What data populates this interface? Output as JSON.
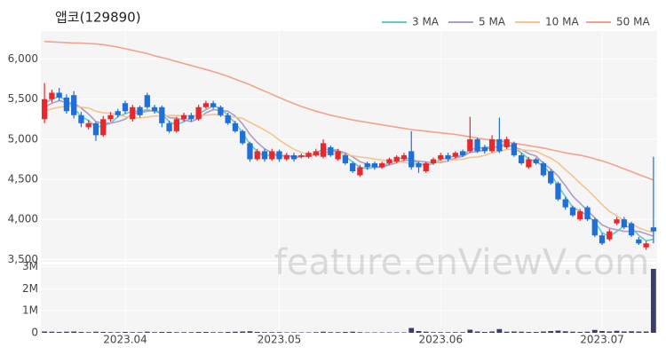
{
  "chart_data": [
    {
      "type": "candlestick",
      "title": "앱코(129890)",
      "watermark": "feature.enViewV.com",
      "up_color": "#e8282e",
      "down_color": "#1f6fd6",
      "grid": true,
      "legend": "top-right",
      "categories": [
        null,
        null,
        null,
        null,
        null,
        null,
        null,
        null,
        null,
        null,
        null,
        "2023.04",
        null,
        null,
        null,
        null,
        null,
        null,
        null,
        null,
        null,
        null,
        null,
        null,
        null,
        null,
        null,
        null,
        null,
        null,
        null,
        null,
        "2023.05",
        null,
        null,
        null,
        null,
        null,
        null,
        null,
        null,
        null,
        null,
        null,
        null,
        null,
        null,
        null,
        null,
        null,
        null,
        null,
        null,
        null,
        "2023.06",
        null,
        null,
        null,
        null,
        null,
        null,
        null,
        null,
        null,
        null,
        null,
        null,
        null,
        null,
        null,
        null,
        null,
        null,
        null,
        null,
        null,
        "2023.07",
        null,
        null,
        null,
        null,
        null,
        null,
        null
      ],
      "open": [
        5250,
        5500,
        5580,
        5520,
        5550,
        5300,
        5150,
        5200,
        5050,
        5250,
        5350,
        5450,
        5250,
        5400,
        5550,
        5400,
        5400,
        5200,
        5100,
        5250,
        5300,
        5250,
        5400,
        5450,
        5400,
        5300,
        5200,
        5100,
        4950,
        4750,
        4850,
        4750,
        4850,
        4750,
        4800,
        4780,
        4780,
        4800,
        4780,
        4900,
        4750,
        4800,
        4700,
        4550,
        4700,
        4700,
        4650,
        4700,
        4720,
        4750,
        4850,
        4700,
        4600,
        4700,
        4750,
        4800,
        4780,
        4850,
        4850,
        5000,
        4900,
        4850,
        5000,
        4900,
        4950,
        4800,
        4650,
        4750,
        4700,
        4600,
        4450,
        4250,
        4150,
        4000,
        4150,
        4000,
        3800,
        3750,
        3950,
        4000,
        3950,
        3750,
        3650,
        3900
      ],
      "high": [
        5700,
        5620,
        5640,
        5560,
        5600,
        5340,
        5240,
        5220,
        5290,
        5340,
        5380,
        5480,
        5430,
        5420,
        5580,
        5430,
        5420,
        5230,
        5280,
        5330,
        5330,
        5430,
        5480,
        5480,
        5420,
        5330,
        5230,
        5120,
        4970,
        4880,
        4880,
        4880,
        4870,
        4830,
        4830,
        4820,
        4850,
        4880,
        5000,
        4920,
        4880,
        4820,
        4720,
        4680,
        4720,
        4720,
        4720,
        4770,
        4800,
        4830,
        5100,
        4720,
        4720,
        4770,
        4830,
        4830,
        4850,
        4870,
        5280,
        5020,
        4930,
        5050,
        5270,
        5030,
        4970,
        4830,
        4780,
        4770,
        4720,
        4620,
        4470,
        4280,
        4170,
        4130,
        4170,
        4020,
        3830,
        3880,
        4030,
        4030,
        3970,
        3780,
        3730,
        4780
      ],
      "low": [
        5200,
        5460,
        5480,
        5320,
        5260,
        5150,
        5120,
        4980,
        5030,
        5220,
        5270,
        5320,
        5220,
        5270,
        5380,
        5320,
        5150,
        5080,
        5080,
        5220,
        5220,
        5230,
        5380,
        5380,
        5280,
        5180,
        5080,
        4930,
        4720,
        4730,
        4720,
        4730,
        4720,
        4730,
        4720,
        4760,
        4760,
        4780,
        4760,
        4780,
        4730,
        4680,
        4580,
        4530,
        4620,
        4620,
        4630,
        4680,
        4700,
        4730,
        4620,
        4580,
        4580,
        4680,
        4730,
        4720,
        4760,
        4780,
        4830,
        4830,
        4820,
        4830,
        4830,
        4880,
        4780,
        4680,
        4630,
        4680,
        4530,
        4430,
        4230,
        4120,
        4030,
        3980,
        3980,
        3780,
        3680,
        3730,
        3930,
        3880,
        3780,
        3680,
        3620,
        3700
      ],
      "close": [
        5500,
        5580,
        5520,
        5350,
        5300,
        5200,
        5200,
        5050,
        5250,
        5300,
        5300,
        5350,
        5400,
        5300,
        5400,
        5350,
        5200,
        5100,
        5250,
        5300,
        5250,
        5400,
        5450,
        5400,
        5300,
        5200,
        5100,
        4950,
        4750,
        4850,
        4750,
        4850,
        4750,
        4800,
        4750,
        4800,
        4830,
        4850,
        4950,
        4800,
        4850,
        4700,
        4600,
        4650,
        4650,
        4650,
        4700,
        4750,
        4780,
        4800,
        4650,
        4650,
        4700,
        4750,
        4800,
        4750,
        4830,
        4800,
        5000,
        4850,
        4850,
        5000,
        4850,
        5000,
        4800,
        4700,
        4750,
        4700,
        4550,
        4450,
        4250,
        4150,
        4050,
        4100,
        4000,
        3800,
        3700,
        3850,
        4000,
        3900,
        3800,
        3700,
        3700,
        3850
      ],
      "series": [
        {
          "name": "3 MA",
          "color": "#63c9cc",
          "values": [
            5450,
            5500,
            5533,
            5483,
            5390,
            5283,
            5233,
            5150,
            5167,
            5200,
            5283,
            5317,
            5350,
            5350,
            5367,
            5350,
            5317,
            5217,
            5183,
            5217,
            5267,
            5317,
            5367,
            5417,
            5383,
            5300,
            5200,
            5083,
            4933,
            4850,
            4783,
            4817,
            4783,
            4800,
            4767,
            4783,
            4793,
            4827,
            4877,
            4867,
            4867,
            4783,
            4717,
            4650,
            4633,
            4650,
            4667,
            4700,
            4743,
            4777,
            4743,
            4700,
            4667,
            4700,
            4750,
            4767,
            4793,
            4793,
            4877,
            4883,
            4900,
            4900,
            4900,
            4950,
            4883,
            4833,
            4750,
            4717,
            4667,
            4567,
            4417,
            4283,
            4150,
            4100,
            4050,
            3967,
            3833,
            3783,
            3850,
            3917,
            3900,
            3800,
            3733,
            3750
          ]
        },
        {
          "name": "5 MA",
          "color": "#ab9cc9",
          "values": [
            5400,
            5450,
            5480,
            5460,
            5450,
            5390,
            5314,
            5220,
            5200,
            5200,
            5220,
            5250,
            5320,
            5330,
            5350,
            5360,
            5330,
            5270,
            5260,
            5240,
            5220,
            5260,
            5330,
            5370,
            5360,
            5350,
            5290,
            5190,
            5060,
            4960,
            4880,
            4830,
            4790,
            4800,
            4780,
            4790,
            4786,
            4806,
            4836,
            4846,
            4856,
            4830,
            4780,
            4720,
            4690,
            4650,
            4650,
            4680,
            4706,
            4736,
            4736,
            4726,
            4716,
            4710,
            4710,
            4730,
            4766,
            4786,
            4836,
            4846,
            4866,
            4900,
            4910,
            4940,
            4900,
            4870,
            4820,
            4790,
            4700,
            4630,
            4540,
            4420,
            4290,
            4200,
            4110,
            4020,
            3930,
            3890,
            3870,
            3850,
            3850,
            3850,
            3820,
            3790
          ]
        },
        {
          "name": "10 MA",
          "color": "#f5c48e",
          "values": [
            5350,
            5380,
            5400,
            5410,
            5410,
            5400,
            5390,
            5350,
            5330,
            5325,
            5305,
            5282,
            5270,
            5265,
            5275,
            5290,
            5290,
            5295,
            5295,
            5295,
            5290,
            5295,
            5300,
            5310,
            5300,
            5285,
            5275,
            5260,
            5210,
            5165,
            5115,
            5060,
            4990,
            4930,
            4875,
            4835,
            4808,
            4798,
            4818,
            4813,
            4823,
            4808,
            4793,
            4778,
            4768,
            4753,
            4740,
            4730,
            4713,
            4713,
            4693,
            4688,
            4698,
            4708,
            4723,
            4733,
            4746,
            4751,
            4773,
            4778,
            4798,
            4833,
            4848,
            4873,
            4873,
            4868,
            4860,
            4850,
            4805,
            4765,
            4705,
            4620,
            4540,
            4450,
            4370,
            4280,
            4185,
            4100,
            4045,
            3985,
            3940,
            3895,
            3860,
            3835
          ]
        },
        {
          "name": "50 MA",
          "color": "#f4a28e",
          "values": [
            6220,
            6215,
            6210,
            6205,
            6200,
            6200,
            6195,
            6190,
            6180,
            6165,
            6150,
            6130,
            6110,
            6090,
            6070,
            6040,
            6020,
            5995,
            5970,
            5945,
            5920,
            5895,
            5870,
            5845,
            5815,
            5785,
            5750,
            5715,
            5680,
            5640,
            5600,
            5560,
            5520,
            5480,
            5445,
            5410,
            5380,
            5350,
            5325,
            5300,
            5280,
            5260,
            5240,
            5225,
            5210,
            5195,
            5180,
            5165,
            5150,
            5135,
            5120,
            5110,
            5100,
            5090,
            5080,
            5070,
            5060,
            5045,
            5030,
            5015,
            5000,
            4990,
            4980,
            4965,
            4950,
            4935,
            4920,
            4905,
            4890,
            4870,
            4850,
            4830,
            4815,
            4800,
            4780,
            4755,
            4730,
            4700,
            4665,
            4630,
            4595,
            4560,
            4525,
            4490
          ]
        }
      ],
      "ylim": [
        3470,
        6350
      ],
      "yticks": [
        {
          "value": 3500,
          "label": "3,500"
        },
        {
          "value": 4000,
          "label": "4,000"
        },
        {
          "value": 4500,
          "label": "4,500"
        },
        {
          "value": 5000,
          "label": "5,000"
        },
        {
          "value": 5500,
          "label": "5,500"
        },
        {
          "value": 6000,
          "label": "6,000"
        }
      ]
    },
    {
      "type": "bar",
      "color": "#3b3d69",
      "values": [
        60000,
        50000,
        40000,
        50000,
        60000,
        40000,
        30000,
        50000,
        40000,
        30000,
        30000,
        40000,
        30000,
        30000,
        50000,
        30000,
        40000,
        40000,
        30000,
        30000,
        30000,
        40000,
        40000,
        30000,
        30000,
        40000,
        50000,
        60000,
        70000,
        40000,
        30000,
        30000,
        30000,
        20000,
        20000,
        20000,
        20000,
        30000,
        50000,
        30000,
        30000,
        40000,
        50000,
        30000,
        20000,
        20000,
        20000,
        20000,
        20000,
        20000,
        220000,
        80000,
        50000,
        30000,
        30000,
        30000,
        30000,
        30000,
        140000,
        60000,
        40000,
        60000,
        170000,
        50000,
        60000,
        50000,
        40000,
        40000,
        60000,
        80000,
        100000,
        70000,
        50000,
        40000,
        50000,
        130000,
        80000,
        60000,
        90000,
        60000,
        70000,
        60000,
        60000,
        2900000
      ],
      "ylim": [
        0,
        3100000
      ],
      "yticks": [
        0,
        {
          "value": 1000000,
          "label": "1M"
        },
        {
          "value": 2000000,
          "label": "2M"
        },
        {
          "value": 3000000,
          "label": "3M"
        }
      ]
    }
  ]
}
